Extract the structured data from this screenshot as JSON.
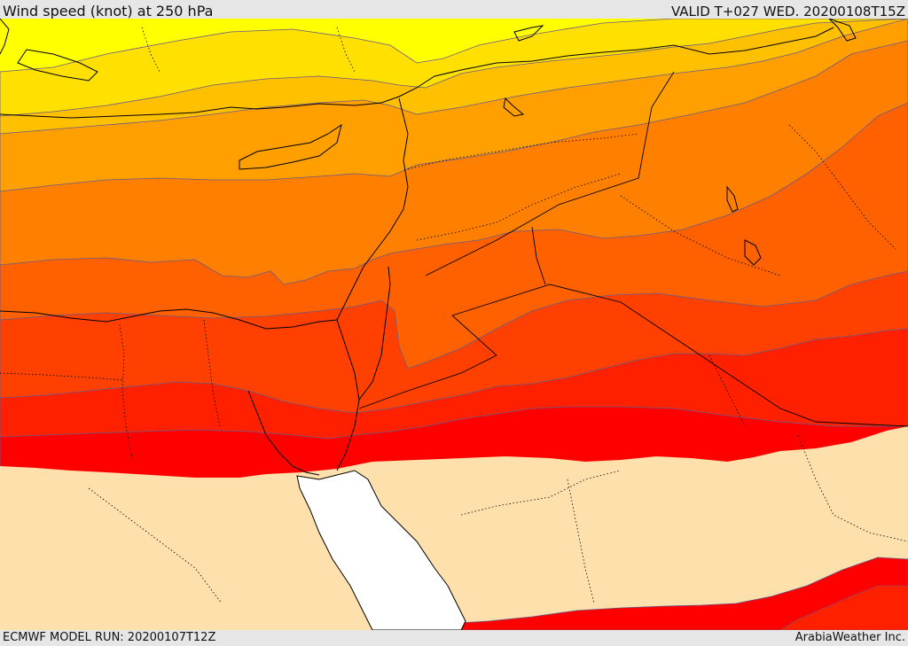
{
  "header": {
    "title": "Wind speed (knot) at 250 hPa",
    "valid": "VALID T+027 WED. 20200108T15Z"
  },
  "footer": {
    "model_run": "ECMWF MODEL RUN: 20200107T12Z",
    "credit": "ArabiaWeather Inc."
  },
  "map": {
    "variable": "wind speed",
    "level": "250 hPa",
    "palette": {
      "below_threshold": "#fde0ac",
      "band_1": "#ffff00",
      "band_2": "#ffe000",
      "band_3": "#ffc000",
      "band_4": "#ffa000",
      "band_5": "#ff8000",
      "band_6": "#ff6000",
      "band_7": "#ff4000",
      "band_8": "#ff2000",
      "band_9": "#ff0000",
      "water_mask": "#ffffff",
      "contour_line": "#6a5a88",
      "coastline": "#000000"
    }
  }
}
